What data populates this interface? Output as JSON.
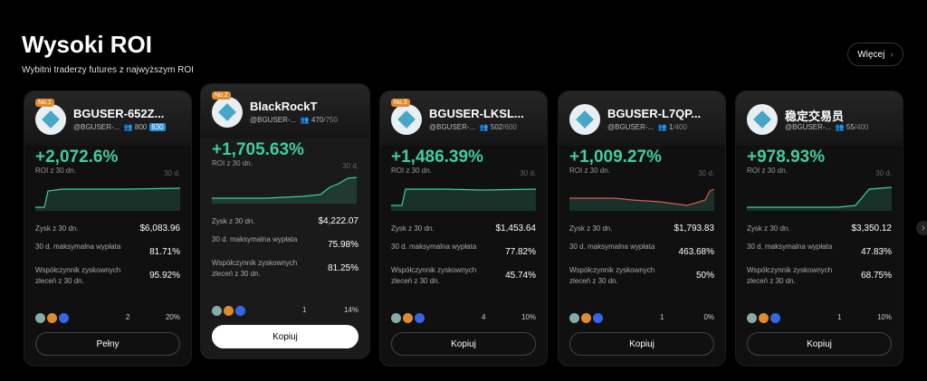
{
  "header": {
    "title": "Wysoki ROI",
    "subtitle": "Wybitni traderzy futures z najwyższym ROI",
    "more_button": "Więcej"
  },
  "cards": [
    {
      "rank": "No.1",
      "name": "BGUSER-652Z...",
      "handle": "@BGUSER-...",
      "followers": "800",
      "capacity": "830",
      "roi": "+2,072.6%",
      "roi_label": "ROI z 30 dn.",
      "period": "30 d.",
      "stats": [
        [
          "Zysk z 30 dn.",
          "$6,083.96"
        ],
        [
          "30 d. maksymalna wypłata",
          "81.71%"
        ],
        [
          "Współczynnik zyskownych zleceń z 30 dn.",
          "95.92%"
        ]
      ],
      "copiers": "2",
      "share": "20%",
      "button": "Pełny"
    },
    {
      "rank": "No.2",
      "name": "BlackRockT",
      "handle": "@BGUSER-...",
      "followers": "470",
      "capacity": "/750",
      "roi": "+1,705.63%",
      "roi_label": "ROI z 30 dn.",
      "period": "30 d.",
      "stats": [
        [
          "Zysk z 30 dn.",
          "$4,222.07"
        ],
        [
          "30 d. maksymalna wypłata",
          "75.98%"
        ],
        [
          "Współczynnik zyskownych zleceń z 30 dn.",
          "81.25%"
        ]
      ],
      "copiers": "1",
      "share": "14%",
      "button": "Kopiuj"
    },
    {
      "rank": "No.3",
      "name": "BGUSER-LKSL...",
      "handle": "@BGUSER-...",
      "followers": "502",
      "capacity": "/600",
      "roi": "+1,486.39%",
      "roi_label": "ROI z 30 dn.",
      "period": "30 d.",
      "stats": [
        [
          "Zysk z 30 dn.",
          "$1,453.64"
        ],
        [
          "30 d. maksymalna wypłata",
          "77.82%"
        ],
        [
          "Współczynnik zyskownych zleceń z 30 dn.",
          "45.74%"
        ]
      ],
      "copiers": "4",
      "share": "10%",
      "button": "Kopiuj"
    },
    {
      "name": "BGUSER-L7QP...",
      "handle": "@BGUSER-...",
      "followers": "1",
      "capacity": "/400",
      "roi": "+1,009.27%",
      "roi_label": "ROI z 30 dn.",
      "period": "30 d.",
      "stats": [
        [
          "Zysk z 30 dn.",
          "$1,793.83"
        ],
        [
          "30 d. maksymalna wypłata",
          "463.68%"
        ],
        [
          "Współczynnik zyskownych zleceń z 30 dn.",
          "50%"
        ]
      ],
      "copiers": "1",
      "share": "0%",
      "button": "Kopiuj"
    },
    {
      "name": "稳定交易员",
      "handle": "@BGUSER-...",
      "followers": "55",
      "capacity": "/400",
      "roi": "+978.93%",
      "roi_label": "ROI z 30 dn.",
      "period": "30 d.",
      "stats": [
        [
          "Zysk z 30 dn.",
          "$3,350.12"
        ],
        [
          "30 d. maksymalna wypłata",
          "47.83%"
        ],
        [
          "Współczynnik zyskownych zleceń z 30 dn.",
          "68.75%"
        ]
      ],
      "copiers": "1",
      "share": "10%",
      "button": "Kopiuj"
    }
  ]
}
